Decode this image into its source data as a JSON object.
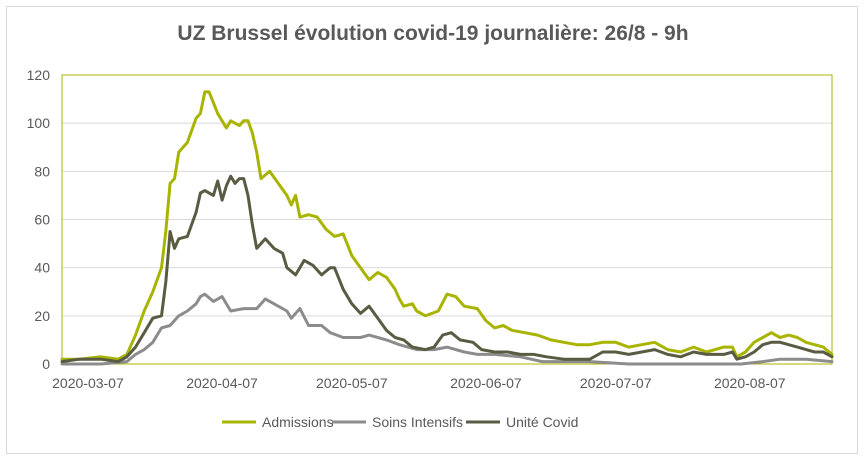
{
  "chart_data": {
    "type": "line",
    "title": "UZ Brussel évolution covid-19 journalière: 26/8 - 9h",
    "xlabel": "",
    "ylabel": "",
    "x_start": "2020-03-01",
    "x_end": "2020-08-26",
    "x_ticks": [
      "2020-03-07",
      "2020-04-07",
      "2020-05-07",
      "2020-06-07",
      "2020-07-07",
      "2020-08-07"
    ],
    "ylim": [
      0,
      120
    ],
    "y_ticks": [
      "0",
      "20",
      "40",
      "60",
      "80",
      "100",
      "120"
    ],
    "grid": true,
    "legend_position": "bottom",
    "series": [
      {
        "name": "Admissions",
        "color": "#a8b400",
        "points": [
          [
            "2020-03-01",
            2
          ],
          [
            "2020-03-05",
            2
          ],
          [
            "2020-03-10",
            3
          ],
          [
            "2020-03-14",
            2
          ],
          [
            "2020-03-16",
            4
          ],
          [
            "2020-03-18",
            12
          ],
          [
            "2020-03-20",
            22
          ],
          [
            "2020-03-22",
            30
          ],
          [
            "2020-03-24",
            40
          ],
          [
            "2020-03-25",
            55
          ],
          [
            "2020-03-26",
            75
          ],
          [
            "2020-03-27",
            77
          ],
          [
            "2020-03-28",
            88
          ],
          [
            "2020-03-30",
            92
          ],
          [
            "2020-04-01",
            102
          ],
          [
            "2020-04-02",
            104
          ],
          [
            "2020-04-03",
            113
          ],
          [
            "2020-04-04",
            113
          ],
          [
            "2020-04-06",
            104
          ],
          [
            "2020-04-08",
            98
          ],
          [
            "2020-04-09",
            101
          ],
          [
            "2020-04-11",
            99
          ],
          [
            "2020-04-12",
            101
          ],
          [
            "2020-04-13",
            101
          ],
          [
            "2020-04-14",
            96
          ],
          [
            "2020-04-15",
            88
          ],
          [
            "2020-04-16",
            77
          ],
          [
            "2020-04-18",
            80
          ],
          [
            "2020-04-20",
            75
          ],
          [
            "2020-04-22",
            70
          ],
          [
            "2020-04-23",
            66
          ],
          [
            "2020-04-24",
            70
          ],
          [
            "2020-04-25",
            61
          ],
          [
            "2020-04-27",
            62
          ],
          [
            "2020-04-29",
            61
          ],
          [
            "2020-05-01",
            56
          ],
          [
            "2020-05-03",
            53
          ],
          [
            "2020-05-05",
            54
          ],
          [
            "2020-05-07",
            45
          ],
          [
            "2020-05-09",
            40
          ],
          [
            "2020-05-11",
            35
          ],
          [
            "2020-05-13",
            38
          ],
          [
            "2020-05-15",
            36
          ],
          [
            "2020-05-17",
            31
          ],
          [
            "2020-05-18",
            27
          ],
          [
            "2020-05-19",
            24
          ],
          [
            "2020-05-21",
            25
          ],
          [
            "2020-05-22",
            22
          ],
          [
            "2020-05-24",
            20
          ],
          [
            "2020-05-27",
            22
          ],
          [
            "2020-05-29",
            29
          ],
          [
            "2020-05-31",
            28
          ],
          [
            "2020-06-02",
            24
          ],
          [
            "2020-06-05",
            23
          ],
          [
            "2020-06-07",
            18
          ],
          [
            "2020-06-09",
            15
          ],
          [
            "2020-06-11",
            16
          ],
          [
            "2020-06-13",
            14
          ],
          [
            "2020-06-16",
            13
          ],
          [
            "2020-06-19",
            12
          ],
          [
            "2020-06-22",
            10
          ],
          [
            "2020-06-25",
            9
          ],
          [
            "2020-06-28",
            8
          ],
          [
            "2020-07-01",
            8
          ],
          [
            "2020-07-04",
            9
          ],
          [
            "2020-07-07",
            9
          ],
          [
            "2020-07-10",
            7
          ],
          [
            "2020-07-13",
            8
          ],
          [
            "2020-07-16",
            9
          ],
          [
            "2020-07-19",
            6
          ],
          [
            "2020-07-22",
            5
          ],
          [
            "2020-07-25",
            7
          ],
          [
            "2020-07-28",
            5
          ],
          [
            "2020-08-01",
            7
          ],
          [
            "2020-08-03",
            7
          ],
          [
            "2020-08-04",
            3
          ],
          [
            "2020-08-06",
            5
          ],
          [
            "2020-08-08",
            9
          ],
          [
            "2020-08-10",
            11
          ],
          [
            "2020-08-12",
            13
          ],
          [
            "2020-08-14",
            11
          ],
          [
            "2020-08-16",
            12
          ],
          [
            "2020-08-18",
            11
          ],
          [
            "2020-08-20",
            9
          ],
          [
            "2020-08-22",
            8
          ],
          [
            "2020-08-24",
            7
          ],
          [
            "2020-08-26",
            4
          ]
        ]
      },
      {
        "name": "Soins Intensifs",
        "color": "#8c8c8c",
        "points": [
          [
            "2020-03-01",
            0
          ],
          [
            "2020-03-10",
            0
          ],
          [
            "2020-03-16",
            1
          ],
          [
            "2020-03-18",
            4
          ],
          [
            "2020-03-20",
            6
          ],
          [
            "2020-03-22",
            9
          ],
          [
            "2020-03-24",
            15
          ],
          [
            "2020-03-26",
            16
          ],
          [
            "2020-03-28",
            20
          ],
          [
            "2020-03-30",
            22
          ],
          [
            "2020-04-01",
            25
          ],
          [
            "2020-04-02",
            28
          ],
          [
            "2020-04-03",
            29
          ],
          [
            "2020-04-05",
            26
          ],
          [
            "2020-04-07",
            28
          ],
          [
            "2020-04-09",
            22
          ],
          [
            "2020-04-12",
            23
          ],
          [
            "2020-04-15",
            23
          ],
          [
            "2020-04-17",
            27
          ],
          [
            "2020-04-19",
            25
          ],
          [
            "2020-04-22",
            22
          ],
          [
            "2020-04-23",
            19
          ],
          [
            "2020-04-25",
            23
          ],
          [
            "2020-04-27",
            16
          ],
          [
            "2020-04-30",
            16
          ],
          [
            "2020-05-02",
            13
          ],
          [
            "2020-05-05",
            11
          ],
          [
            "2020-05-09",
            11
          ],
          [
            "2020-05-11",
            12
          ],
          [
            "2020-05-15",
            10
          ],
          [
            "2020-05-18",
            8
          ],
          [
            "2020-05-22",
            6
          ],
          [
            "2020-05-26",
            6
          ],
          [
            "2020-05-29",
            7
          ],
          [
            "2020-06-02",
            5
          ],
          [
            "2020-06-05",
            4
          ],
          [
            "2020-06-09",
            4
          ],
          [
            "2020-06-15",
            3
          ],
          [
            "2020-06-20",
            1
          ],
          [
            "2020-07-01",
            1
          ],
          [
            "2020-07-10",
            0
          ],
          [
            "2020-07-20",
            0
          ],
          [
            "2020-08-05",
            0
          ],
          [
            "2020-08-10",
            1
          ],
          [
            "2020-08-14",
            2
          ],
          [
            "2020-08-20",
            2
          ],
          [
            "2020-08-26",
            1
          ]
        ]
      },
      {
        "name": "Unité Covid",
        "color": "#595c43",
        "points": [
          [
            "2020-03-01",
            1
          ],
          [
            "2020-03-05",
            2
          ],
          [
            "2020-03-10",
            2
          ],
          [
            "2020-03-14",
            1
          ],
          [
            "2020-03-16",
            3
          ],
          [
            "2020-03-18",
            7
          ],
          [
            "2020-03-20",
            13
          ],
          [
            "2020-03-22",
            19
          ],
          [
            "2020-03-24",
            20
          ],
          [
            "2020-03-25",
            34
          ],
          [
            "2020-03-26",
            55
          ],
          [
            "2020-03-27",
            48
          ],
          [
            "2020-03-28",
            52
          ],
          [
            "2020-03-30",
            53
          ],
          [
            "2020-04-01",
            63
          ],
          [
            "2020-04-02",
            71
          ],
          [
            "2020-04-03",
            72
          ],
          [
            "2020-04-05",
            70
          ],
          [
            "2020-04-06",
            76
          ],
          [
            "2020-04-07",
            68
          ],
          [
            "2020-04-08",
            74
          ],
          [
            "2020-04-09",
            78
          ],
          [
            "2020-04-10",
            75
          ],
          [
            "2020-04-11",
            77
          ],
          [
            "2020-04-12",
            77
          ],
          [
            "2020-04-13",
            70
          ],
          [
            "2020-04-14",
            58
          ],
          [
            "2020-04-15",
            48
          ],
          [
            "2020-04-17",
            52
          ],
          [
            "2020-04-19",
            48
          ],
          [
            "2020-04-21",
            46
          ],
          [
            "2020-04-22",
            40
          ],
          [
            "2020-04-24",
            37
          ],
          [
            "2020-04-26",
            43
          ],
          [
            "2020-04-28",
            41
          ],
          [
            "2020-04-30",
            37
          ],
          [
            "2020-05-02",
            40
          ],
          [
            "2020-05-03",
            40
          ],
          [
            "2020-05-05",
            31
          ],
          [
            "2020-05-07",
            25
          ],
          [
            "2020-05-09",
            21
          ],
          [
            "2020-05-11",
            24
          ],
          [
            "2020-05-13",
            19
          ],
          [
            "2020-05-15",
            14
          ],
          [
            "2020-05-17",
            11
          ],
          [
            "2020-05-19",
            10
          ],
          [
            "2020-05-21",
            7
          ],
          [
            "2020-05-24",
            6
          ],
          [
            "2020-05-26",
            7
          ],
          [
            "2020-05-28",
            12
          ],
          [
            "2020-05-30",
            13
          ],
          [
            "2020-06-01",
            10
          ],
          [
            "2020-06-04",
            9
          ],
          [
            "2020-06-06",
            6
          ],
          [
            "2020-06-09",
            5
          ],
          [
            "2020-06-12",
            5
          ],
          [
            "2020-06-15",
            4
          ],
          [
            "2020-06-18",
            4
          ],
          [
            "2020-06-21",
            3
          ],
          [
            "2020-06-25",
            2
          ],
          [
            "2020-06-28",
            2
          ],
          [
            "2020-07-01",
            2
          ],
          [
            "2020-07-04",
            5
          ],
          [
            "2020-07-07",
            5
          ],
          [
            "2020-07-10",
            4
          ],
          [
            "2020-07-13",
            5
          ],
          [
            "2020-07-16",
            6
          ],
          [
            "2020-07-19",
            4
          ],
          [
            "2020-07-22",
            3
          ],
          [
            "2020-07-25",
            5
          ],
          [
            "2020-07-28",
            4
          ],
          [
            "2020-08-01",
            4
          ],
          [
            "2020-08-03",
            5
          ],
          [
            "2020-08-04",
            2
          ],
          [
            "2020-08-06",
            3
          ],
          [
            "2020-08-08",
            5
          ],
          [
            "2020-08-10",
            8
          ],
          [
            "2020-08-12",
            9
          ],
          [
            "2020-08-14",
            9
          ],
          [
            "2020-08-16",
            8
          ],
          [
            "2020-08-18",
            7
          ],
          [
            "2020-08-20",
            6
          ],
          [
            "2020-08-22",
            5
          ],
          [
            "2020-08-24",
            5
          ],
          [
            "2020-08-26",
            3
          ]
        ]
      }
    ]
  }
}
